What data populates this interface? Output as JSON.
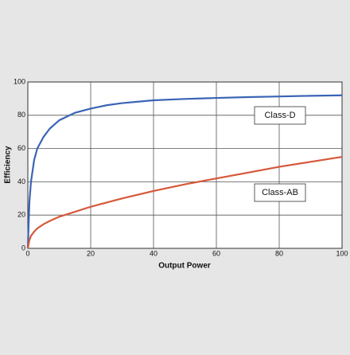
{
  "chart_data": {
    "type": "line",
    "xlabel": "Output Power",
    "ylabel": "Efficiency",
    "x": [
      0,
      0.5,
      1,
      2,
      3,
      5,
      7,
      10,
      15,
      20,
      25,
      30,
      40,
      50,
      60,
      70,
      80,
      90,
      100
    ],
    "series": [
      {
        "name": "Class-D",
        "color": "#3a64b6",
        "values": [
          0,
          28,
          40,
          53,
          60,
          67,
          72,
          77,
          81.5,
          84,
          86,
          87.3,
          89,
          89.8,
          90.4,
          90.9,
          91.3,
          91.7,
          92
        ]
      },
      {
        "name": "Class-AB",
        "color": "#d6583a",
        "values": [
          0,
          5,
          7.5,
          10,
          12,
          14.5,
          16.5,
          19,
          22,
          25,
          27.5,
          30,
          34.5,
          38.5,
          42,
          45.5,
          49,
          52,
          55
        ]
      }
    ],
    "xlim": [
      0,
      100
    ],
    "xticks": [
      0,
      20,
      40,
      60,
      80,
      100
    ],
    "ylim": [
      0,
      100
    ],
    "yticks": [
      0,
      20,
      40,
      60,
      80,
      100
    ],
    "grid": true
  }
}
